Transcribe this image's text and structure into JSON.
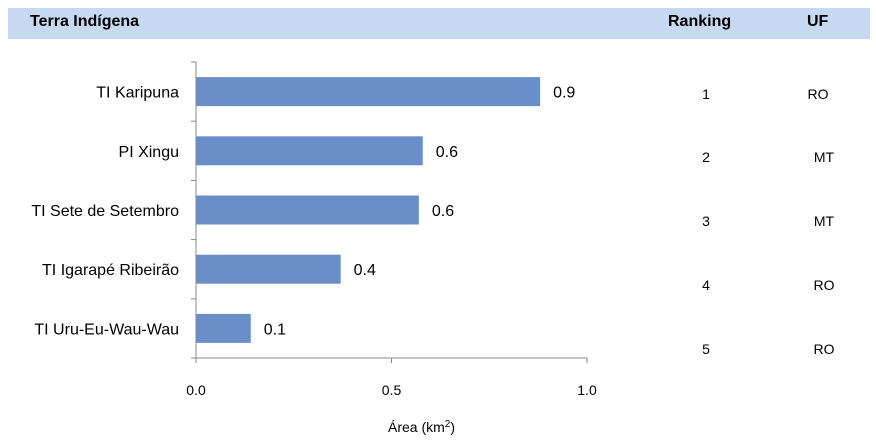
{
  "header": {
    "name_col": "Terra Indígena",
    "rank_col": "Ranking",
    "uf_col": "UF"
  },
  "chart_data": {
    "type": "bar",
    "orientation": "horizontal",
    "categories": [
      "TI Karipuna",
      "PI Xingu",
      "TI Sete de Setembro",
      "TI Igarapé Ribeirão",
      "TI Uru-Eu-Wau-Wau"
    ],
    "values": [
      0.9,
      0.6,
      0.6,
      0.4,
      0.1
    ],
    "value_labels": [
      "0.9",
      "0.6",
      "0.6",
      "0.4",
      "0.1"
    ],
    "bar_values": [
      0.88,
      0.58,
      0.57,
      0.37,
      0.14
    ],
    "xlim": [
      0,
      1.0
    ],
    "xticks": [
      "0.0",
      "0.5",
      "1.0"
    ],
    "xlabel": "Área (km",
    "xlabel_sup": "2",
    "xlabel_close": ")",
    "bar_color": "#6a8fc8",
    "grid": false
  },
  "ranking": [
    "1",
    "2",
    "3",
    "4",
    "5"
  ],
  "uf": [
    "RO",
    "MT",
    "MT",
    "RO",
    "RO"
  ]
}
